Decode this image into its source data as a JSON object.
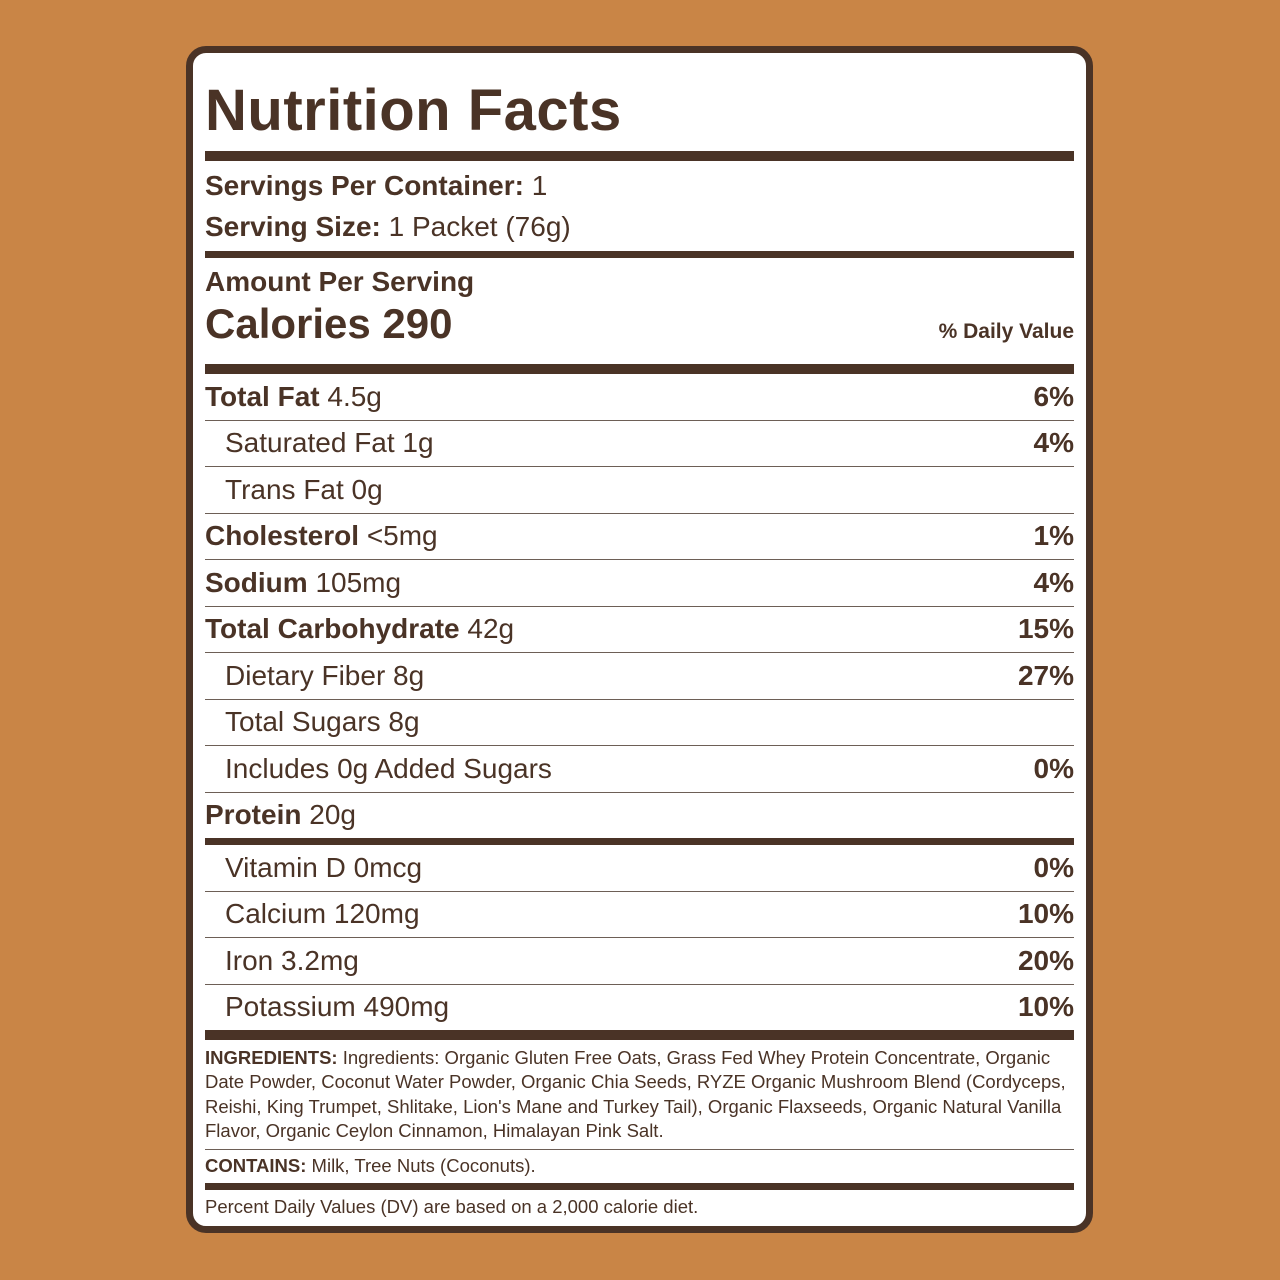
{
  "title": "Nutrition Facts",
  "servings": {
    "per_container_label": "Servings Per Container:",
    "per_container_value": "1",
    "size_label": "Serving Size:",
    "size_value": "1 Packet (76g)"
  },
  "amount_per_serving": "Amount Per Serving",
  "calories": {
    "label": "Calories",
    "value": "290"
  },
  "daily_value_header": "% Daily Value",
  "nutrients": [
    {
      "name": "Total Fat",
      "amount": "4.5g",
      "dv": "6%"
    },
    {
      "name": "Saturated Fat 1g",
      "amount": "",
      "dv": "4%"
    },
    {
      "name": "Trans Fat 0g",
      "amount": "",
      "dv": ""
    },
    {
      "name": "Cholesterol",
      "amount": "<5mg",
      "dv": "1%"
    },
    {
      "name": "Sodium",
      "amount": "105mg",
      "dv": "4%"
    },
    {
      "name": "Total Carbohydrate",
      "amount": "42g",
      "dv": "15%"
    },
    {
      "name": "Dietary Fiber 8g",
      "amount": "",
      "dv": "27%"
    },
    {
      "name": "Total Sugars 8g",
      "amount": "",
      "dv": ""
    },
    {
      "name": "Includes 0g Added Sugars",
      "amount": "",
      "dv": "0%"
    },
    {
      "name": "Protein",
      "amount": "20g",
      "dv": ""
    }
  ],
  "vitamins": [
    {
      "name": "Vitamin D 0mcg",
      "dv": "0%"
    },
    {
      "name": "Calcium 120mg",
      "dv": "10%"
    },
    {
      "name": "Iron 3.2mg",
      "dv": "20%"
    },
    {
      "name": "Potassium 490mg",
      "dv": "10%"
    }
  ],
  "ingredients": {
    "label": "INGREDIENTS:",
    "text": "Ingredients: Organic Gluten Free Oats, Grass Fed Whey Protein Concentrate, Organic Date Powder, Coconut Water Powder, Organic Chia Seeds, RYZE Organic Mushroom Blend (Cordyceps, Reishi, King Trumpet, Shlitake, Lion's Mane and Turkey Tail), Organic Flaxseeds, Organic Natural Vanilla Flavor, Organic Ceylon Cinnamon, Himalayan Pink Salt."
  },
  "contains": {
    "label": "CONTAINS:",
    "text": "Milk, Tree Nuts (Coconuts)."
  },
  "footnote": "Percent Daily Values (DV) are based on a 2,000 calorie diet.",
  "colors": {
    "background": "#C98546",
    "ink": "#4A3326",
    "panel": "#FFFFFF"
  }
}
